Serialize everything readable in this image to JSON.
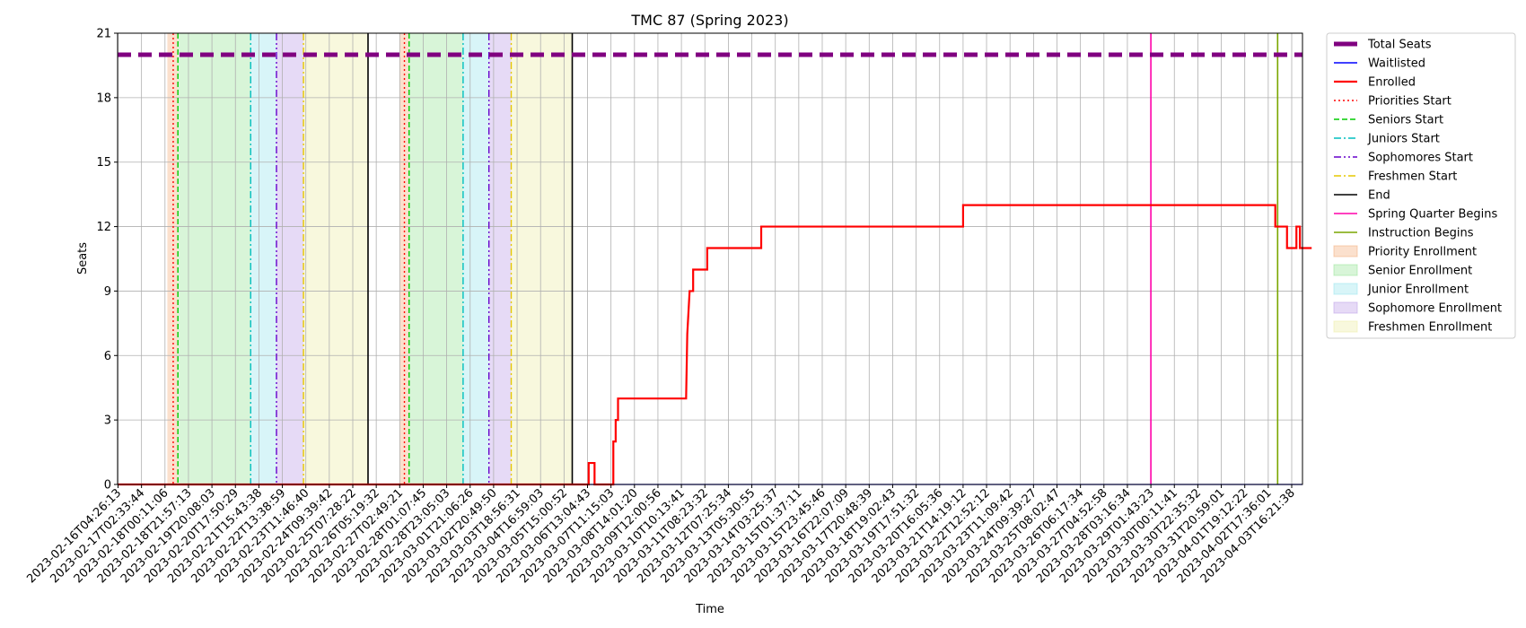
{
  "chart_data": {
    "type": "line",
    "title": "TMC 87 (Spring 2023)",
    "xlabel": "Time",
    "ylabel": "Seats",
    "ylim": [
      0,
      21
    ],
    "yticks": [
      0,
      3,
      6,
      9,
      12,
      15,
      18,
      21
    ],
    "grid": true,
    "legend_position": "outside-right",
    "x_tick_labels": [
      "2023-02-16T04:26:13",
      "2023-02-17T02:33:44",
      "2023-02-18T00:11:06",
      "2023-02-18T21:57:13",
      "2023-02-19T20:08:03",
      "2023-02-20T17:50:29",
      "2023-02-21T15:43:38",
      "2023-02-22T13:38:59",
      "2023-02-23T11:46:40",
      "2023-02-24T09:39:42",
      "2023-02-25T07:28:22",
      "2023-02-26T05:19:32",
      "2023-02-27T02:49:21",
      "2023-02-28T01:07:45",
      "2023-02-28T23:05:03",
      "2023-03-01T21:06:26",
      "2023-03-02T20:49:50",
      "2023-03-03T18:56:31",
      "2023-03-04T16:59:03",
      "2023-03-05T15:00:52",
      "2023-03-06T13:04:43",
      "2023-03-07T11:15:03",
      "2023-03-08T14:01:20",
      "2023-03-09T12:00:56",
      "2023-03-10T10:13:41",
      "2023-03-11T08:23:32",
      "2023-03-12T07:25:34",
      "2023-03-13T05:30:55",
      "2023-03-14T03:25:37",
      "2023-03-15T01:37:11",
      "2023-03-15T23:45:46",
      "2023-03-16T22:07:09",
      "2023-03-17T20:48:39",
      "2023-03-18T19:02:43",
      "2023-03-19T17:51:32",
      "2023-03-20T16:05:36",
      "2023-03-21T14:19:12",
      "2023-03-22T12:52:12",
      "2023-03-23T11:09:42",
      "2023-03-24T09:39:27",
      "2023-03-25T08:02:47",
      "2023-03-26T06:17:34",
      "2023-03-27T04:52:58",
      "2023-03-28T03:16:34",
      "2023-03-29T01:43:23",
      "2023-03-30T00:11:41",
      "2023-03-30T22:35:32",
      "2023-03-31T20:59:01",
      "2023-04-01T19:12:22",
      "2023-04-02T17:36:01",
      "2023-04-03T16:21:38"
    ],
    "series": [
      {
        "name": "Total Seats",
        "color": "#800080",
        "style": "dashed-thick",
        "constant": 20
      },
      {
        "name": "Waitlisted",
        "color": "#0000ff",
        "style": "solid",
        "constant": 0
      },
      {
        "name": "Enrolled",
        "color": "#ff0000",
        "style": "solid",
        "points_tick_index": [
          [
            0,
            0
          ],
          [
            20.05,
            0
          ],
          [
            20.05,
            1
          ],
          [
            20.3,
            1
          ],
          [
            20.3,
            0
          ],
          [
            21.1,
            0
          ],
          [
            21.1,
            2
          ],
          [
            21.2,
            2
          ],
          [
            21.2,
            3
          ],
          [
            21.3,
            3
          ],
          [
            21.3,
            4
          ],
          [
            24.2,
            4
          ],
          [
            24.25,
            7
          ],
          [
            24.3,
            8
          ],
          [
            24.35,
            9
          ],
          [
            24.5,
            9
          ],
          [
            24.5,
            10
          ],
          [
            25.1,
            10
          ],
          [
            25.1,
            11
          ],
          [
            27.4,
            11
          ],
          [
            27.4,
            12
          ],
          [
            36.0,
            12
          ],
          [
            36.0,
            13
          ],
          [
            49.3,
            13
          ],
          [
            49.3,
            12
          ],
          [
            49.8,
            12
          ],
          [
            49.8,
            11
          ],
          [
            50.2,
            11
          ],
          [
            50.2,
            12
          ],
          [
            50.35,
            12
          ],
          [
            50.35,
            11
          ],
          [
            50.85,
            11
          ]
        ]
      }
    ],
    "vertical_lines": [
      {
        "name": "Priorities Start",
        "color": "#ff0000",
        "style": "dotted",
        "at_tick_index": [
          2.35,
          12.2
        ]
      },
      {
        "name": "Seniors Start",
        "color": "#00cc00",
        "style": "dashed",
        "at_tick_index": [
          2.55,
          12.4
        ]
      },
      {
        "name": "Juniors Start",
        "color": "#00bfbf",
        "style": "dashdot",
        "at_tick_index": [
          5.65,
          14.7
        ]
      },
      {
        "name": "Sophomores Start",
        "color": "#6600cc",
        "style": "dashdotdot",
        "at_tick_index": [
          6.75,
          15.8
        ]
      },
      {
        "name": "Freshmen Start",
        "color": "#e6c800",
        "style": "dashdot",
        "at_tick_index": [
          7.9,
          16.75
        ]
      },
      {
        "name": "End",
        "color": "#000000",
        "style": "solid",
        "at_tick_index": [
          10.65,
          19.35
        ]
      },
      {
        "name": "Spring Quarter Begins",
        "color": "#ff00aa",
        "style": "solid",
        "at_tick_index": [
          44.0
        ]
      },
      {
        "name": "Instruction Begins",
        "color": "#7aa600",
        "style": "solid",
        "at_tick_index": [
          49.4
        ]
      }
    ],
    "shaded_regions": [
      {
        "name": "Priority Enrollment",
        "color": "#f4b183",
        "ranges_tick_index": [
          [
            2.1,
            2.55
          ],
          [
            12.0,
            12.4
          ]
        ]
      },
      {
        "name": "Senior Enrollment",
        "color": "#9de69d",
        "ranges_tick_index": [
          [
            2.55,
            5.65
          ],
          [
            12.4,
            14.7
          ]
        ]
      },
      {
        "name": "Junior Enrollment",
        "color": "#9ee6ee",
        "ranges_tick_index": [
          [
            5.65,
            6.75
          ],
          [
            14.7,
            15.8
          ]
        ]
      },
      {
        "name": "Sophomore Enrollment",
        "color": "#c0a3e8",
        "ranges_tick_index": [
          [
            6.75,
            7.9
          ],
          [
            15.8,
            16.75
          ]
        ]
      },
      {
        "name": "Freshmen Enrollment",
        "color": "#eeeeaa",
        "ranges_tick_index": [
          [
            7.9,
            10.65
          ],
          [
            16.75,
            19.35
          ]
        ]
      }
    ]
  }
}
